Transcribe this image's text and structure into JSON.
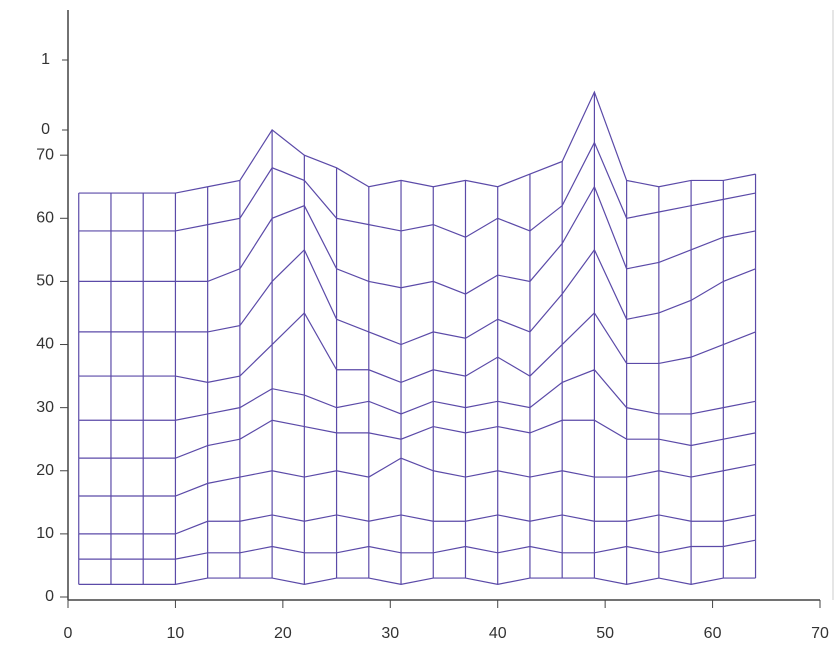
{
  "chart_data": {
    "type": "mesh",
    "x": [
      1,
      4,
      7,
      10,
      13,
      16,
      19,
      22,
      25,
      28,
      31,
      34,
      37,
      40,
      43,
      46,
      49,
      52,
      55,
      58,
      61,
      64
    ],
    "color": "#5b4aa8",
    "series": [
      {
        "values": [
          2,
          2,
          2,
          2,
          3,
          3,
          3,
          2,
          3,
          3,
          2,
          3,
          3,
          2,
          3,
          3,
          3,
          2,
          3,
          2,
          3,
          3
        ]
      },
      {
        "values": [
          6,
          6,
          6,
          6,
          7,
          7,
          8,
          7,
          7,
          8,
          7,
          7,
          8,
          7,
          8,
          7,
          7,
          8,
          7,
          8,
          8,
          9
        ]
      },
      {
        "values": [
          10,
          10,
          10,
          10,
          12,
          12,
          13,
          12,
          13,
          12,
          13,
          12,
          12,
          13,
          12,
          13,
          12,
          12,
          13,
          12,
          12,
          13
        ]
      },
      {
        "values": [
          16,
          16,
          16,
          16,
          18,
          19,
          20,
          19,
          20,
          19,
          22,
          20,
          19,
          20,
          19,
          20,
          19,
          19,
          20,
          19,
          20,
          21
        ]
      },
      {
        "values": [
          22,
          22,
          22,
          22,
          24,
          25,
          28,
          27,
          26,
          26,
          25,
          27,
          26,
          27,
          26,
          28,
          28,
          25,
          25,
          24,
          25,
          26
        ]
      },
      {
        "values": [
          28,
          28,
          28,
          28,
          29,
          30,
          33,
          32,
          30,
          31,
          29,
          31,
          30,
          31,
          30,
          34,
          36,
          30,
          29,
          29,
          30,
          31
        ]
      },
      {
        "values": [
          35,
          35,
          35,
          35,
          34,
          35,
          40,
          45,
          36,
          36,
          34,
          36,
          35,
          38,
          35,
          40,
          45,
          37,
          37,
          38,
          40,
          42
        ]
      },
      {
        "values": [
          42,
          42,
          42,
          42,
          42,
          43,
          50,
          55,
          44,
          42,
          40,
          42,
          41,
          44,
          42,
          48,
          55,
          44,
          45,
          47,
          50,
          52
        ]
      },
      {
        "values": [
          50,
          50,
          50,
          50,
          50,
          52,
          60,
          62,
          52,
          50,
          49,
          50,
          48,
          51,
          50,
          56,
          65,
          52,
          53,
          55,
          57,
          58
        ]
      },
      {
        "values": [
          58,
          58,
          58,
          58,
          59,
          60,
          68,
          66,
          60,
          59,
          58,
          59,
          57,
          60,
          58,
          62,
          72,
          60,
          61,
          62,
          63,
          64
        ]
      },
      {
        "values": [
          64,
          64,
          64,
          64,
          65,
          66,
          74,
          70,
          68,
          65,
          66,
          65,
          66,
          65,
          67,
          69,
          80,
          66,
          65,
          66,
          66,
          67
        ]
      }
    ],
    "xlim": [
      0,
      70
    ],
    "xticks": [
      0,
      10,
      20,
      30,
      40,
      50,
      60,
      70
    ],
    "ylim": [
      0,
      93
    ],
    "yticks": [
      0,
      10,
      20,
      30,
      40,
      50,
      60,
      70
    ],
    "zticks": [
      0,
      1
    ]
  }
}
